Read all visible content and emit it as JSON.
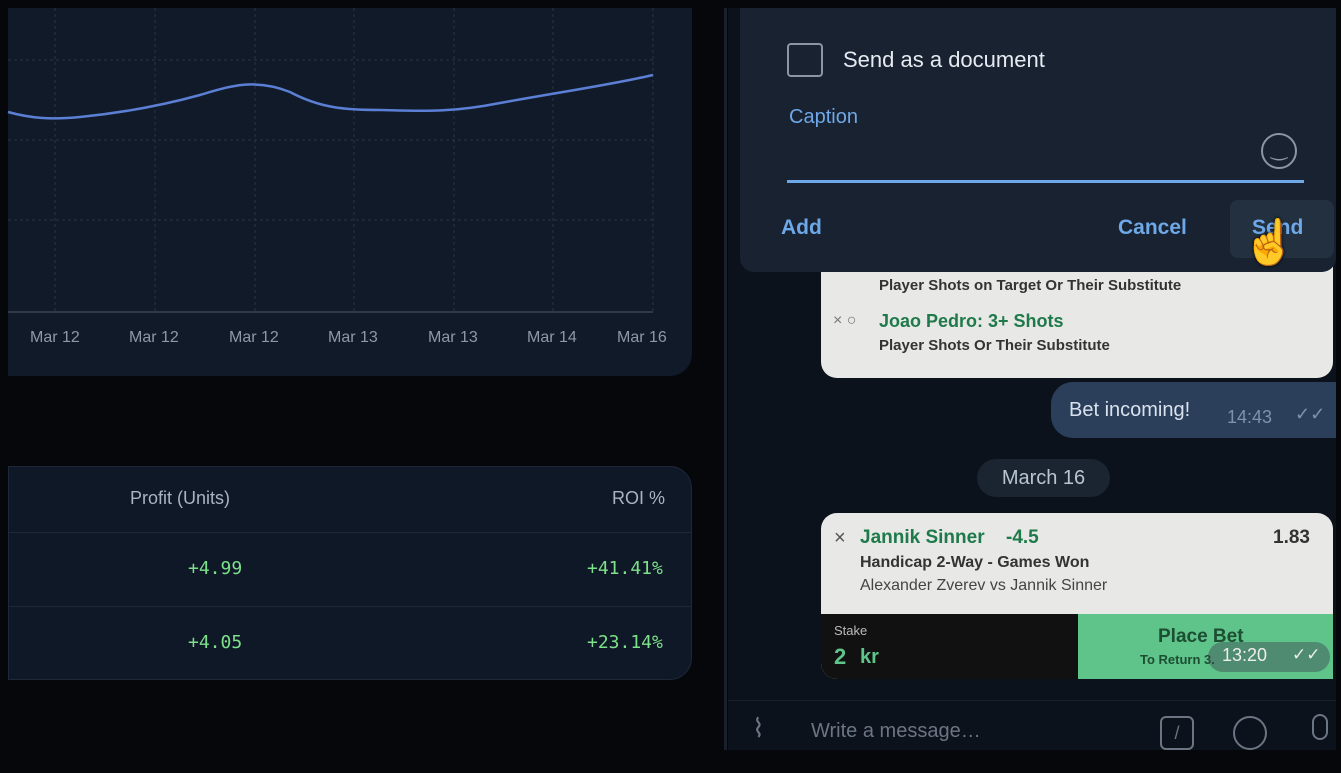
{
  "chart": {
    "x_labels": [
      "Mar 12",
      "Mar 12",
      "Mar 12",
      "Mar 13",
      "Mar 13",
      "Mar 14",
      "Mar 16"
    ]
  },
  "table": {
    "headers": [
      "Profit (Units)",
      "ROI %"
    ],
    "rows": [
      [
        "+4.99",
        "+41.41%"
      ],
      [
        "+4.05",
        "+23.14%"
      ]
    ]
  },
  "dialog": {
    "checkbox": "Send as a document",
    "caption_label": "Caption",
    "buttons": [
      "Add",
      "Cancel",
      "Send"
    ]
  },
  "messages": {
    "prev_bet": {
      "line1": "Player Shots on Target Or Their Substitute",
      "selection": "Joao Pedro: 3+ Shots",
      "market": "Player Shots Or Their Substitute"
    },
    "text": {
      "body": "Bet incoming!",
      "time": "14:43"
    },
    "date": "March 16",
    "bet": {
      "player": "Jannik Sinner",
      "line": "-4.5",
      "odds": "1.83",
      "market": "Handicap 2-Way - Games Won",
      "match": "Alexander Zverev vs Jannik Sinner",
      "stake_label": "Stake",
      "stake": "2",
      "currency": "kr",
      "button": "Place Bet",
      "returns": "To Return 3.",
      "time": "13:20"
    }
  },
  "composer": {
    "placeholder": "Write a message…"
  }
}
